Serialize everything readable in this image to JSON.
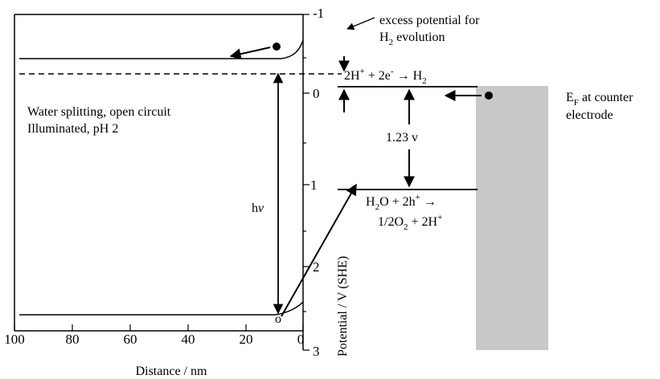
{
  "left_panel": {
    "x_axis": {
      "label": "Distance / nm",
      "ticks": [
        "100",
        "80",
        "60",
        "40",
        "20",
        "0"
      ]
    },
    "annotations": {
      "condition_line1": "Water splitting, open circuit",
      "condition_line2": "Illuminated, pH 2",
      "photon_h": "h",
      "photon_v": "v",
      "hole_marker": "o"
    }
  },
  "potential_axis": {
    "label": "Potential / V (SHE)",
    "ticks": [
      "-1",
      "0",
      "1",
      "2",
      "3"
    ]
  },
  "right_panel": {
    "excess_potential_line1": "excess potential for",
    "excess_potential_line2_main": "H",
    "excess_potential_line2_sub": "2",
    "excess_potential_line2_rest": " evolution",
    "h2_reaction": {
      "p1": "2H",
      "sup1": "+",
      "p2": " + 2e",
      "sup2": "-",
      "p3": " → H",
      "sub3": "2"
    },
    "gap_label": "1.23 v",
    "o2_reaction_line1": {
      "p1": "H",
      "sub1": "2",
      "p2": "O + 2h",
      "sup2": "+",
      "p3": " →"
    },
    "o2_reaction_line2": {
      "p1": "1/2O",
      "sub1": "2",
      "p2": " + 2H",
      "sup2": "+"
    },
    "fermi_label_main": "E",
    "fermi_label_sub": "F",
    "fermi_label_rest": " at counter",
    "fermi_label_line2": "electrode"
  },
  "colors": {
    "counter_electrode": "#c8c8c8",
    "lines": "#000000"
  }
}
